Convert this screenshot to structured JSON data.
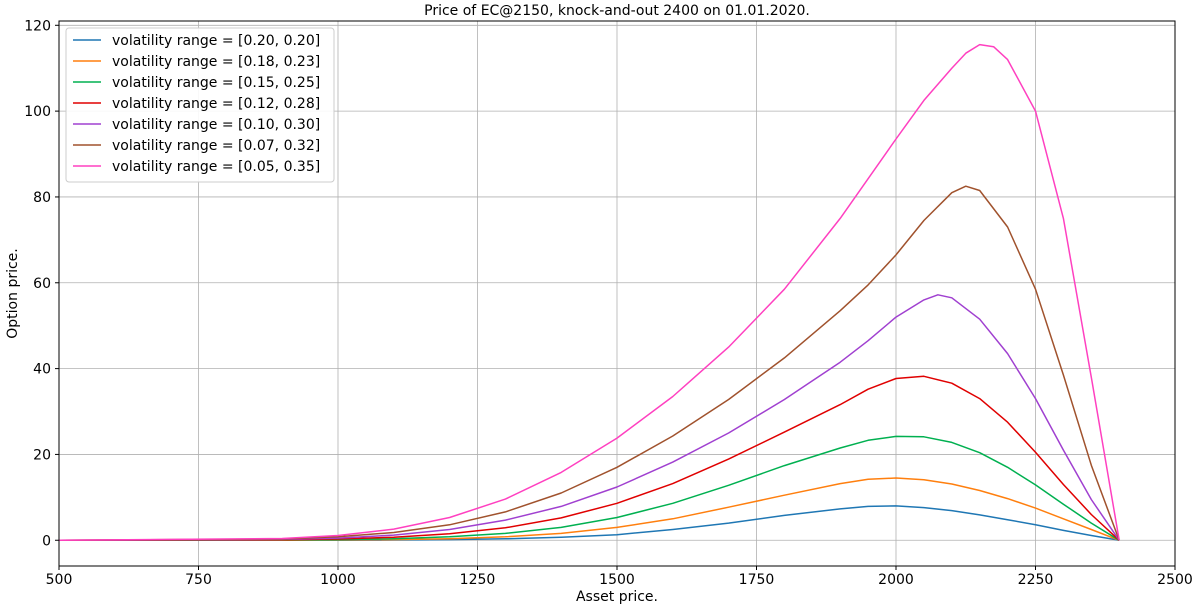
{
  "chart_data": {
    "type": "line",
    "title": "Price of EC@2150, knock-and-out 2400 on 01.01.2020.",
    "xlabel": "Asset price.",
    "ylabel": "Option price.",
    "xlim": [
      500,
      2500
    ],
    "ylim": [
      -6,
      121
    ],
    "xticks": [
      500,
      750,
      1000,
      1250,
      1500,
      1750,
      2000,
      2250,
      2500
    ],
    "yticks": [
      0,
      20,
      40,
      60,
      80,
      100,
      120
    ],
    "grid": true,
    "legend_position": "top-left",
    "series": [
      {
        "name": "volatility range = [0.20, 0.20]",
        "color": "#1f77b4",
        "x": [
          500,
          900,
          1000,
          1100,
          1200,
          1300,
          1400,
          1500,
          1600,
          1700,
          1800,
          1900,
          1950,
          2000,
          2050,
          2100,
          2150,
          2200,
          2250,
          2300,
          2350,
          2400
        ],
        "y": [
          0,
          0,
          0,
          0.05,
          0.15,
          0.35,
          0.7,
          1.3,
          2.5,
          4.0,
          5.8,
          7.3,
          7.9,
          8.0,
          7.6,
          6.9,
          5.9,
          4.8,
          3.6,
          2.3,
          1.1,
          0
        ]
      },
      {
        "name": "volatility range = [0.18, 0.23]",
        "color": "#ff7f0e",
        "x": [
          500,
          900,
          1000,
          1100,
          1200,
          1300,
          1400,
          1500,
          1600,
          1700,
          1800,
          1900,
          1950,
          2000,
          2050,
          2100,
          2150,
          2200,
          2250,
          2300,
          2350,
          2400
        ],
        "y": [
          0,
          0,
          0.05,
          0.15,
          0.35,
          0.8,
          1.6,
          3.0,
          5.0,
          7.7,
          10.5,
          13.2,
          14.2,
          14.5,
          14.1,
          13.1,
          11.6,
          9.7,
          7.5,
          5.0,
          2.5,
          0
        ]
      },
      {
        "name": "volatility range = [0.15, 0.25]",
        "color": "#00b050",
        "x": [
          500,
          900,
          1000,
          1100,
          1200,
          1300,
          1400,
          1500,
          1600,
          1700,
          1800,
          1900,
          1950,
          2000,
          2050,
          2100,
          2150,
          2200,
          2250,
          2300,
          2350,
          2400
        ],
        "y": [
          0,
          0.05,
          0.15,
          0.35,
          0.8,
          1.6,
          3.0,
          5.3,
          8.6,
          12.8,
          17.4,
          21.5,
          23.3,
          24.2,
          24.1,
          22.8,
          20.4,
          17.0,
          12.9,
          8.4,
          4.0,
          0
        ]
      },
      {
        "name": "volatility range = [0.12, 0.28]",
        "color": "#e00000",
        "x": [
          500,
          900,
          1000,
          1100,
          1200,
          1300,
          1400,
          1500,
          1600,
          1700,
          1800,
          1900,
          1950,
          2000,
          2050,
          2100,
          2150,
          2200,
          2250,
          2300,
          2350,
          2400
        ],
        "y": [
          0,
          0.1,
          0.3,
          0.7,
          1.5,
          2.9,
          5.2,
          8.6,
          13.2,
          18.9,
          25.2,
          31.6,
          35.2,
          37.7,
          38.2,
          36.6,
          33.0,
          27.5,
          20.5,
          13.0,
          6.0,
          0
        ]
      },
      {
        "name": "volatility range = [0.10, 0.30]",
        "color": "#a040d0",
        "x": [
          500,
          900,
          1000,
          1100,
          1200,
          1300,
          1400,
          1500,
          1600,
          1700,
          1800,
          1900,
          1950,
          2000,
          2050,
          2075,
          2100,
          2150,
          2200,
          2250,
          2300,
          2350,
          2400
        ],
        "y": [
          0,
          0.2,
          0.5,
          1.2,
          2.5,
          4.7,
          7.9,
          12.4,
          18.2,
          25.0,
          32.8,
          41.5,
          46.5,
          52.0,
          56.0,
          57.2,
          56.5,
          51.5,
          43.5,
          33.0,
          21.0,
          9.5,
          0
        ]
      },
      {
        "name": "volatility range = [0.07, 0.32]",
        "color": "#a0522d",
        "x": [
          500,
          900,
          1000,
          1100,
          1200,
          1300,
          1400,
          1500,
          1600,
          1700,
          1800,
          1900,
          1950,
          2000,
          2050,
          2100,
          2125,
          2150,
          2200,
          2250,
          2300,
          2350,
          2400
        ],
        "y": [
          0,
          0.3,
          0.8,
          1.8,
          3.6,
          6.6,
          11.0,
          17.0,
          24.3,
          32.8,
          42.5,
          53.5,
          59.5,
          66.5,
          74.5,
          81.0,
          82.5,
          81.5,
          73.0,
          58.5,
          38.5,
          17.5,
          0
        ]
      },
      {
        "name": "volatility range = [0.05, 0.35]",
        "color": "#ff40c0",
        "x": [
          500,
          900,
          1000,
          1100,
          1200,
          1300,
          1400,
          1500,
          1600,
          1700,
          1800,
          1900,
          2000,
          2050,
          2100,
          2125,
          2150,
          2175,
          2200,
          2250,
          2300,
          2350,
          2400
        ],
        "y": [
          0,
          0.4,
          1.1,
          2.6,
          5.3,
          9.6,
          15.8,
          23.8,
          33.5,
          45.0,
          58.5,
          75.0,
          93.5,
          102.5,
          110.0,
          113.5,
          115.5,
          115.0,
          112.0,
          100.0,
          75.0,
          38.0,
          0
        ]
      }
    ]
  }
}
